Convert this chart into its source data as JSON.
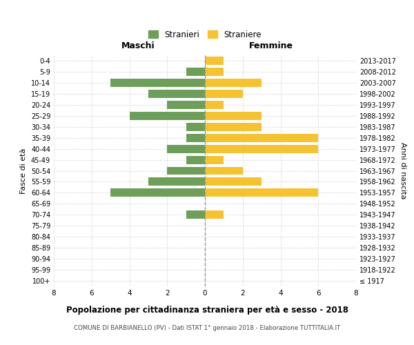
{
  "age_groups": [
    "100+",
    "95-99",
    "90-94",
    "85-89",
    "80-84",
    "75-79",
    "70-74",
    "65-69",
    "60-64",
    "55-59",
    "50-54",
    "45-49",
    "40-44",
    "35-39",
    "30-34",
    "25-29",
    "20-24",
    "15-19",
    "10-14",
    "5-9",
    "0-4"
  ],
  "birth_years": [
    "≤ 1917",
    "1918-1922",
    "1923-1927",
    "1928-1932",
    "1933-1937",
    "1938-1942",
    "1943-1947",
    "1948-1952",
    "1953-1957",
    "1958-1962",
    "1963-1967",
    "1968-1972",
    "1973-1977",
    "1978-1982",
    "1983-1987",
    "1988-1992",
    "1993-1997",
    "1998-2002",
    "2003-2007",
    "2008-2012",
    "2013-2017"
  ],
  "maschi": [
    0,
    0,
    0,
    0,
    0,
    0,
    1,
    0,
    5,
    3,
    2,
    1,
    2,
    1,
    1,
    4,
    2,
    3,
    5,
    1,
    0
  ],
  "femmine": [
    0,
    0,
    0,
    0,
    0,
    0,
    1,
    0,
    6,
    3,
    2,
    1,
    6,
    6,
    3,
    3,
    1,
    2,
    3,
    1,
    1
  ],
  "color_maschi": "#6d9e5a",
  "color_femmine": "#f5c232",
  "title": "Popolazione per cittadinanza straniera per età e sesso - 2018",
  "subtitle": "COMUNE DI BARBIANELLO (PV) - Dati ISTAT 1° gennaio 2018 - Elaborazione TUTTITALIA.IT",
  "ylabel_left": "Fasce di età",
  "ylabel_right": "Anni di nascita",
  "header_left": "Maschi",
  "header_right": "Femmine",
  "legend_stranieri": "Stranieri",
  "legend_straniere": "Straniere",
  "xlim": 8,
  "background_color": "#ffffff",
  "grid_color": "#cccccc"
}
